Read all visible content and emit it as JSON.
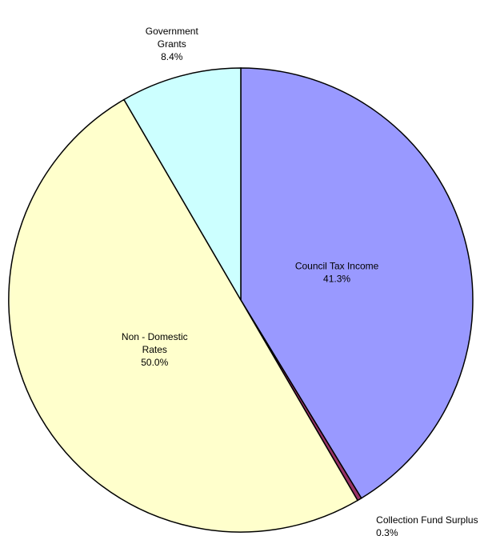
{
  "chart_data": {
    "type": "pie",
    "categories": [
      "Council Tax Income",
      "Collection Fund Surplus",
      "Non - Domestic\nRates",
      "Government\nGrants"
    ],
    "values": [
      41.3,
      0.3,
      50.0,
      8.4
    ],
    "value_labels": [
      "41.3%",
      "0.3%",
      "50.0%",
      "8.4%"
    ],
    "colors": [
      "#9999ff",
      "#993366",
      "#ffffcc",
      "#ccffff"
    ]
  }
}
